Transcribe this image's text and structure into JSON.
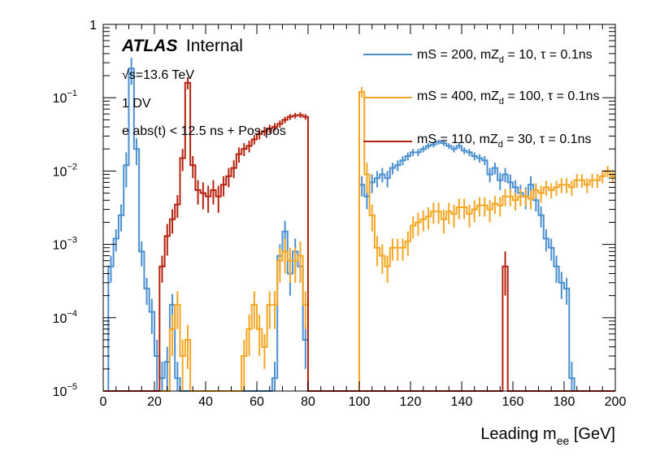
{
  "chart_data": {
    "type": "line",
    "style": "step-histogram-with-error-bars",
    "xlabel": "Leading m",
    "xlabel_sub": "ee",
    "xlabel_unit": " [GeV]",
    "xlim": [
      0,
      200
    ],
    "ylim": [
      1e-05,
      1
    ],
    "yscale": "log",
    "bin_width": 2,
    "x_ticks": [
      "0",
      "20",
      "40",
      "60",
      "80",
      "100",
      "120",
      "140",
      "160",
      "180",
      "200"
    ],
    "y_tick_mantissa": "10",
    "y_tick_exponents": [
      "−5",
      "−4",
      "−3",
      "−2",
      "−1"
    ],
    "y_top_label": "1",
    "atlas_label": "ATLAS",
    "atlas_status": "Internal",
    "annotations": [
      "√s=13.6 TeV",
      "1 DV",
      "e abs(t) < 12.5 ns + Pos-pos"
    ],
    "legend_position": "top-right",
    "series": [
      {
        "name": "mS = 200, mZ_d = 10, τ = 0.1ns",
        "legend_main": "mS = 200, mZ",
        "legend_sub": "d",
        "legend_tail": " = 10, τ = 0.1ns",
        "color": "#4a90d0",
        "x_start": 0,
        "values": [
          0,
          0.0005,
          0.0012,
          0.0025,
          0.012,
          0.25,
          0.02,
          0.0008,
          0.00025,
          0.00012,
          3e-05,
          1.5e-05,
          2.5e-05,
          0.00015,
          1.5e-05,
          0,
          0,
          0,
          0,
          0,
          0,
          0,
          0,
          0,
          0,
          0,
          0,
          0,
          0,
          0,
          0,
          0,
          0,
          1.5e-05,
          0.0007,
          0.0015,
          0.0004,
          0.0008,
          0.0005,
          5e-05,
          0,
          0,
          0,
          0,
          0,
          0,
          0,
          0,
          0,
          0,
          0.0065,
          0.0045,
          0.007,
          0.008,
          0.009,
          0.008,
          0.011,
          0.012,
          0.014,
          0.016,
          0.018,
          0.018,
          0.02,
          0.022,
          0.023,
          0.025,
          0.024,
          0.022,
          0.02,
          0.022,
          0.019,
          0.018,
          0.016,
          0.015,
          0.014,
          0.009,
          0.011,
          0.0075,
          0.009,
          0.007,
          0.006,
          0.005,
          0.0045,
          0.0065,
          0.004,
          0.0025,
          0.0012,
          0.0009,
          0.0005,
          0.0003,
          0.00025,
          1.5e-05,
          0,
          0,
          0,
          0,
          0,
          0,
          0,
          0
        ],
        "errors": [
          0,
          0.0002,
          0.0004,
          0.001,
          0.006,
          0.1,
          0.008,
          0.0003,
          0.0001,
          6e-05,
          2e-05,
          1e-05,
          1.5e-05,
          6e-05,
          1e-05,
          0,
          0,
          0,
          0,
          0,
          0,
          0,
          0,
          0,
          0,
          0,
          0,
          0,
          0,
          0,
          0,
          0,
          0,
          1e-05,
          0.0003,
          0.0006,
          0.0002,
          0.0004,
          0.0002,
          3e-05,
          0,
          0,
          0,
          0,
          0,
          0,
          0,
          0,
          0,
          0,
          0.002,
          0.0015,
          0.002,
          0.002,
          0.002,
          0.002,
          0.002,
          0.002,
          0.002,
          0.002,
          0.002,
          0.002,
          0.002,
          0.002,
          0.002,
          0.002,
          0.002,
          0.002,
          0.002,
          0.002,
          0.002,
          0.002,
          0.002,
          0.002,
          0.002,
          0.002,
          0.002,
          0.002,
          0.002,
          0.002,
          0.0015,
          0.0015,
          0.0015,
          0.002,
          0.0012,
          0.0008,
          0.0004,
          0.0003,
          0.0002,
          0.00012,
          0.0001,
          1e-05,
          0,
          0,
          0,
          0,
          0,
          0,
          0,
          0
        ]
      },
      {
        "name": "mS = 400, mZ_d = 100, τ = 0.1ns",
        "legend_main": "mS = 400, mZ",
        "legend_sub": "d",
        "legend_tail": " = 100, τ = 0.1ns",
        "color": "#f5a623",
        "x_start": 0,
        "values": [
          0,
          0,
          0,
          0,
          0,
          0,
          0,
          0,
          0,
          0,
          0,
          0,
          0,
          7e-05,
          0.00015,
          3e-05,
          5e-05,
          0,
          0,
          0,
          0,
          0,
          0,
          0,
          0,
          0,
          0,
          3e-05,
          7e-05,
          0.00015,
          7e-05,
          4e-05,
          0.00015,
          0.00015,
          0.0006,
          0.0008,
          0.0006,
          0.0006,
          0.0007,
          0.00015,
          0,
          0,
          0,
          0,
          0,
          0,
          0,
          0,
          0,
          0,
          0.12,
          0.009,
          0.0025,
          0.0009,
          0.0007,
          0.0005,
          0.0009,
          0.0009,
          0.0009,
          0.0011,
          0.0018,
          0.002,
          0.0022,
          0.0024,
          0.0028,
          0.0028,
          0.0022,
          0.0028,
          0.0026,
          0.0032,
          0.0032,
          0.0026,
          0.003,
          0.0034,
          0.0034,
          0.003,
          0.0036,
          0.0034,
          0.0045,
          0.0045,
          0.004,
          0.0045,
          0.0045,
          0.0042,
          0.0055,
          0.005,
          0.006,
          0.0055,
          0.006,
          0.0065,
          0.0065,
          0.006,
          0.0075,
          0.0075,
          0.0065,
          0.0075,
          0.0075,
          0.0085,
          0.01,
          0.0085
        ],
        "errors": [
          0,
          0,
          0,
          0,
          0,
          0,
          0,
          0,
          0,
          0,
          0,
          0,
          0,
          4e-05,
          8e-05,
          2e-05,
          3e-05,
          0,
          0,
          0,
          0,
          0,
          0,
          0,
          0,
          0,
          0,
          2e-05,
          4e-05,
          8e-05,
          4e-05,
          2e-05,
          8e-05,
          8e-05,
          0.0003,
          0.0004,
          0.0003,
          0.0003,
          0.0004,
          8e-05,
          0,
          0,
          0,
          0,
          0,
          0,
          0,
          0,
          0,
          0,
          0.02,
          0.004,
          0.001,
          0.0004,
          0.0003,
          0.0002,
          0.0003,
          0.0003,
          0.0003,
          0.0004,
          0.0006,
          0.0007,
          0.0007,
          0.0008,
          0.0009,
          0.0009,
          0.0008,
          0.0009,
          0.0009,
          0.001,
          0.001,
          0.0009,
          0.001,
          0.001,
          0.001,
          0.001,
          0.001,
          0.001,
          0.0012,
          0.0012,
          0.0011,
          0.0012,
          0.0012,
          0.0012,
          0.0013,
          0.0013,
          0.0014,
          0.0013,
          0.0014,
          0.0015,
          0.0015,
          0.0014,
          0.0016,
          0.0016,
          0.0015,
          0.0016,
          0.0016,
          0.0017,
          0.0018,
          0.0017
        ]
      },
      {
        "name": "mS = 110, mZ_d = 30, τ = 0.1ns",
        "legend_main": "mS = 110, mZ",
        "legend_sub": "d",
        "legend_tail": " = 30, τ = 0.1ns",
        "color": "#b5230f",
        "x_start": 0,
        "values": [
          0,
          0,
          0,
          0,
          0,
          0,
          0,
          0,
          0,
          0,
          0,
          0.0005,
          0.0013,
          0.0022,
          0.0035,
          0.015,
          0.16,
          0.012,
          0.0055,
          0.005,
          0.0045,
          0.0055,
          0.0045,
          0.0065,
          0.0085,
          0.011,
          0.017,
          0.02,
          0.022,
          0.027,
          0.032,
          0.035,
          0.038,
          0.04,
          0.044,
          0.05,
          0.055,
          0.057,
          0.058,
          0.055,
          0,
          0,
          0,
          0,
          0,
          0,
          0,
          0,
          0,
          0,
          0,
          0,
          0,
          0,
          0,
          0,
          0,
          0,
          0,
          0,
          0,
          0,
          0,
          0,
          0,
          0,
          0,
          0,
          0,
          0,
          0,
          0,
          0,
          0,
          0,
          0,
          0,
          0,
          0.0005,
          0,
          0,
          0,
          0,
          0,
          0,
          0,
          0,
          0,
          0,
          0,
          0,
          0,
          0,
          0,
          0,
          0,
          0,
          0,
          0,
          0
        ],
        "errors": [
          0,
          0,
          0,
          0,
          0,
          0,
          0,
          0,
          0,
          0,
          0,
          0.0002,
          0.0006,
          0.0008,
          0.0012,
          0.005,
          0.03,
          0.004,
          0.002,
          0.002,
          0.0018,
          0.002,
          0.0018,
          0.002,
          0.0025,
          0.003,
          0.004,
          0.004,
          0.004,
          0.004,
          0.005,
          0.005,
          0.005,
          0.005,
          0.005,
          0.005,
          0.005,
          0.005,
          0.005,
          0.005,
          0,
          0,
          0,
          0,
          0,
          0,
          0,
          0,
          0,
          0,
          0,
          0,
          0,
          0,
          0,
          0,
          0,
          0,
          0,
          0,
          0,
          0,
          0,
          0,
          0,
          0,
          0,
          0,
          0,
          0,
          0,
          0,
          0,
          0,
          0,
          0,
          0,
          0,
          0.0003,
          0,
          0,
          0,
          0,
          0,
          0,
          0,
          0,
          0,
          0,
          0,
          0,
          0,
          0,
          0,
          0,
          0,
          0,
          0,
          0,
          0
        ]
      }
    ]
  }
}
